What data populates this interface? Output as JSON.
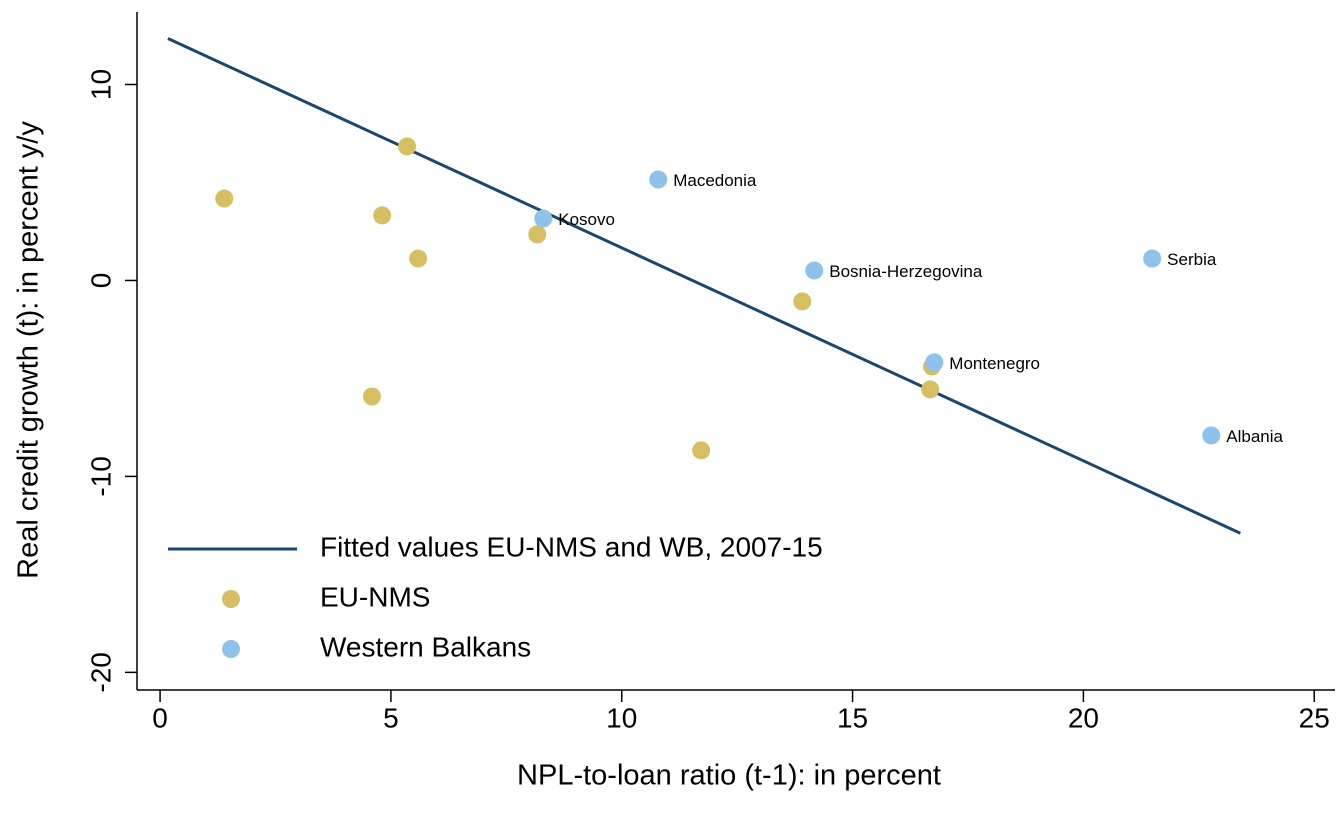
{
  "chart_data": {
    "type": "scatter",
    "xlabel": "NPL-to-loan ratio (t-1): in percent",
    "ylabel": "Real credit growth (t): in percent y/y",
    "xlim": [
      -0.5,
      25.45
    ],
    "ylim": [
      -20.9,
      13.7
    ],
    "xticks": [
      0,
      5,
      10,
      15,
      20,
      25
    ],
    "yticks": [
      -20,
      -10,
      0,
      10
    ],
    "legend": "lower left",
    "series": [
      {
        "name": "Fitted values EU-NMS and WB, 2007-15",
        "type": "line",
        "color": "#1a476f",
        "x": [
          0.17,
          23.4
        ],
        "values": [
          12.35,
          -12.9
        ]
      },
      {
        "name": "EU-NMS",
        "type": "scatter",
        "color": "#d6bf63",
        "x": [
          1.39,
          5.35,
          4.81,
          5.59,
          8.17,
          4.59,
          11.72,
          13.91,
          16.72,
          16.68
        ],
        "values": [
          4.18,
          6.84,
          3.32,
          1.12,
          2.35,
          -5.92,
          -8.67,
          -1.07,
          -4.39,
          -5.56
        ]
      },
      {
        "name": "Western Balkans",
        "type": "scatter",
        "color": "#8ec2ea",
        "x": [
          8.3,
          10.79,
          14.17,
          21.49,
          16.77,
          22.77
        ],
        "values": [
          3.16,
          5.15,
          0.51,
          1.12,
          -4.18,
          -7.91
        ],
        "labels": [
          "Kosovo",
          "Macedonia",
          "Bosnia-Herzegovina",
          "Serbia",
          "Montenegro",
          "Albania"
        ]
      }
    ]
  }
}
